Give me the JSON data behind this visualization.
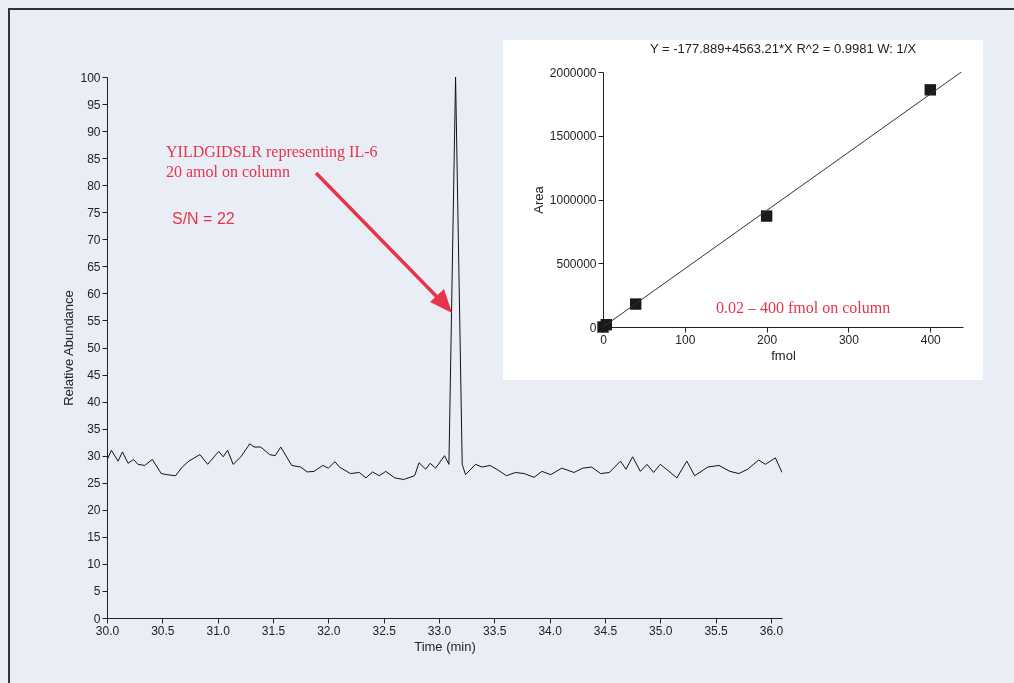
{
  "chart_data": [
    {
      "type": "line",
      "xlabel": "Time (min)",
      "ylabel": "Relative Abundance",
      "annotations": [
        "YILDGIDSLR  representing IL-6",
        "20 amol on column",
        "S/N = 22"
      ],
      "series": [
        {
          "color": "#111111",
          "x": [
            30.0,
            30.04,
            30.1,
            30.14,
            30.19,
            30.24,
            30.28,
            30.34,
            30.41,
            30.49,
            30.54,
            30.62,
            30.68,
            30.74,
            30.84,
            30.91,
            31.01,
            31.05,
            31.09,
            31.14,
            31.21,
            31.29,
            31.33,
            31.39,
            31.47,
            31.52,
            31.57,
            31.67,
            31.75,
            31.81,
            31.87,
            31.95,
            32.0,
            32.06,
            32.1,
            32.2,
            32.28,
            32.34,
            32.4,
            32.46,
            32.52,
            32.6,
            32.68,
            32.78,
            32.82,
            32.88,
            32.92,
            32.97,
            33.05,
            33.09,
            33.15,
            33.21,
            33.24,
            33.33,
            33.39,
            33.46,
            33.53,
            33.61,
            33.69,
            33.77,
            33.86,
            33.93,
            34.01,
            34.11,
            34.22,
            34.3,
            34.38,
            34.46,
            34.54,
            34.64,
            34.69,
            34.75,
            34.82,
            34.88,
            34.94,
            35.0,
            35.08,
            35.15,
            35.24,
            35.31,
            35.43,
            35.53,
            35.63,
            35.71,
            35.79,
            35.89,
            35.95,
            36.04,
            36.1
          ],
          "values": [
            29.2,
            31.0,
            29.0,
            30.7,
            28.6,
            29.3,
            28.4,
            28.2,
            29.3,
            26.7,
            26.5,
            26.3,
            27.9,
            29.0,
            30.2,
            28.4,
            30.8,
            29.8,
            31.0,
            28.4,
            29.8,
            32.2,
            31.6,
            31.6,
            30.2,
            30.0,
            31.6,
            28.2,
            27.9,
            27.0,
            27.1,
            28.2,
            27.7,
            28.9,
            27.9,
            26.7,
            26.9,
            25.9,
            27.0,
            26.3,
            27.1,
            25.9,
            25.6,
            26.3,
            28.7,
            27.5,
            28.6,
            27.7,
            30.0,
            28.4,
            100,
            28.4,
            26.5,
            28.4,
            27.9,
            28.2,
            27.4,
            26.3,
            26.9,
            26.7,
            26.0,
            27.1,
            26.5,
            27.7,
            26.9,
            27.7,
            27.9,
            26.7,
            26.9,
            29.0,
            27.5,
            29.8,
            27.1,
            28.4,
            26.9,
            28.4,
            27.1,
            25.9,
            29.0,
            26.3,
            27.9,
            28.2,
            27.1,
            26.7,
            27.5,
            29.2,
            28.4,
            29.6,
            26.9
          ]
        }
      ],
      "xlim": [
        30,
        36.1
      ],
      "xticks": [
        {
          "value": 30,
          "label": "30.0"
        },
        30.5,
        {
          "value": 31,
          "label": "31.0"
        },
        31.5,
        {
          "value": 32,
          "label": "32.0"
        },
        32.5,
        {
          "value": 33,
          "label": "33.0"
        },
        33.5,
        {
          "value": 34,
          "label": "34.0"
        },
        34.5,
        {
          "value": 35,
          "label": "35.0"
        },
        35.5,
        {
          "value": 36,
          "label": "36.0"
        }
      ],
      "ylim": [
        0,
        100
      ],
      "yticks": [
        0,
        5,
        10,
        15,
        20,
        25,
        30,
        35,
        40,
        45,
        50,
        55,
        60,
        65,
        70,
        75,
        80,
        85,
        90,
        95,
        100
      ]
    },
    {
      "type": "scatter",
      "title": "Y = -177.889+4563.21*X   R^2 = 0.9981   W: 1/X",
      "xlabel": "fmol",
      "ylabel": "Area",
      "annotations": [
        "0.02 – 400 fmol on column"
      ],
      "series": [
        {
          "marker": "square",
          "color": "#1a1a1a",
          "x": [
            0.02,
            4,
            40,
            200,
            400
          ],
          "values": [
            0,
            18000,
            180000,
            870000,
            1860000
          ]
        },
        {
          "type": "line",
          "color": "#333333",
          "x": [
            0,
            438
          ],
          "values": [
            0,
            2000000
          ]
        }
      ],
      "xlim": [
        0,
        440
      ],
      "xticks": [
        0,
        100,
        200,
        300,
        400
      ],
      "ylim": [
        0,
        2000000
      ],
      "yticks": [
        0,
        500000,
        1000000,
        1500000,
        2000000
      ]
    }
  ]
}
